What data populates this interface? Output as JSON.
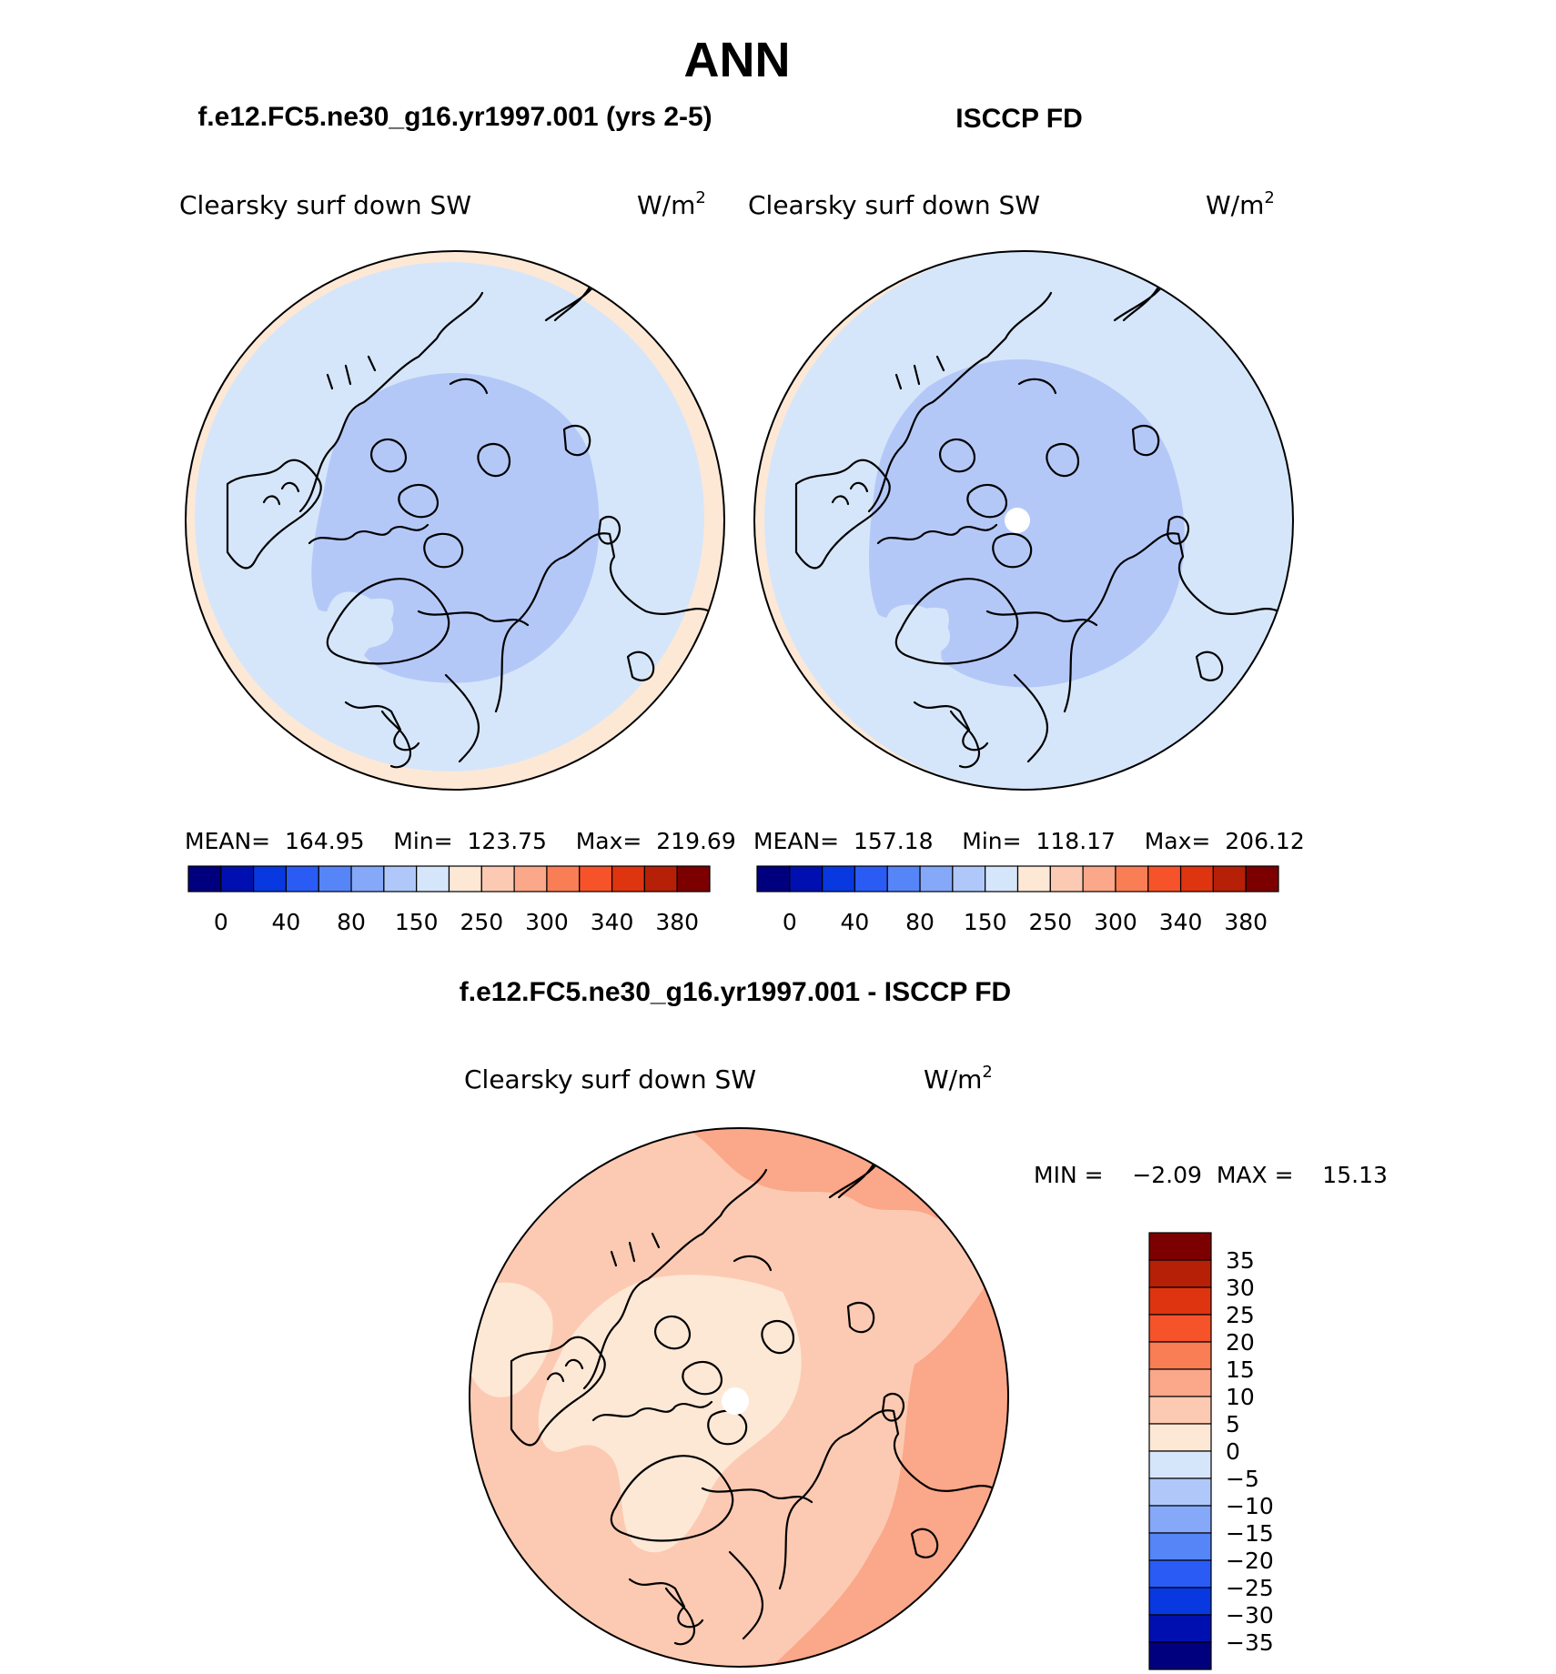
{
  "figure": {
    "title": "ANN",
    "top_left_caption": "f.e12.FC5.ne30_g16.yr1997.001 (yrs 2-5)",
    "top_right_caption": "ISCCP FD",
    "bottom_caption": "f.e12.FC5.ne30_g16.yr1997.001 - ISCCP FD"
  },
  "panels": {
    "model": {
      "variable": "Clearsky surf down SW",
      "units_base": "W/m",
      "units_exp": "2",
      "stats": "MEAN=  164.95    Min=  123.75    Max=  219.69",
      "stats_values": {
        "mean": 164.95,
        "min": 123.75,
        "max": 219.69
      }
    },
    "obs": {
      "variable": "Clearsky surf down SW",
      "units_base": "W/m",
      "units_exp": "2",
      "stats": "MEAN=  157.18    Min=  118.17    Max=  206.12",
      "stats_values": {
        "mean": 157.18,
        "min": 118.17,
        "max": 206.12
      }
    },
    "diff": {
      "variable": "Clearsky surf down SW",
      "units_base": "W/m",
      "units_exp": "2",
      "stats": "MIN =    −2.09  MAX =    15.13",
      "stats_values": {
        "min": -2.09,
        "max": 15.13
      }
    }
  },
  "colorbars": {
    "absolute": {
      "colors": [
        "#00007f",
        "#0010b0",
        "#0838df",
        "#2a5bf4",
        "#5585f6",
        "#85a8f8",
        "#b0c8f9",
        "#d6e6fa",
        "#fde8d6",
        "#fccab2",
        "#fba789",
        "#f97d55",
        "#f6532b",
        "#de3410",
        "#b52006",
        "#7d0000"
      ],
      "labels": [
        "0",
        "40",
        "80",
        "150",
        "250",
        "300",
        "340",
        "380"
      ]
    },
    "difference": {
      "colors": [
        "#7d0000",
        "#b52006",
        "#de3410",
        "#f6532b",
        "#f97d55",
        "#fba789",
        "#fccab2",
        "#fde8d6",
        "#d6e6fa",
        "#b0c8f9",
        "#85a8f8",
        "#5585f6",
        "#2a5bf4",
        "#0838df",
        "#0010b0",
        "#00007f"
      ],
      "labels": [
        "35",
        "30",
        "25",
        "20",
        "15",
        "10",
        "5",
        "0",
        "−5",
        "−10",
        "−15",
        "−20",
        "−25",
        "−30",
        "−35"
      ]
    }
  },
  "colors": {
    "polar_blue": "#b4c8f8",
    "mid_blue": "#d6e6fa",
    "edge_peach": "#fde8d6",
    "diff_light": "#fde8d6",
    "diff_mid": "#fccab2",
    "diff_strong": "#fba789"
  }
}
